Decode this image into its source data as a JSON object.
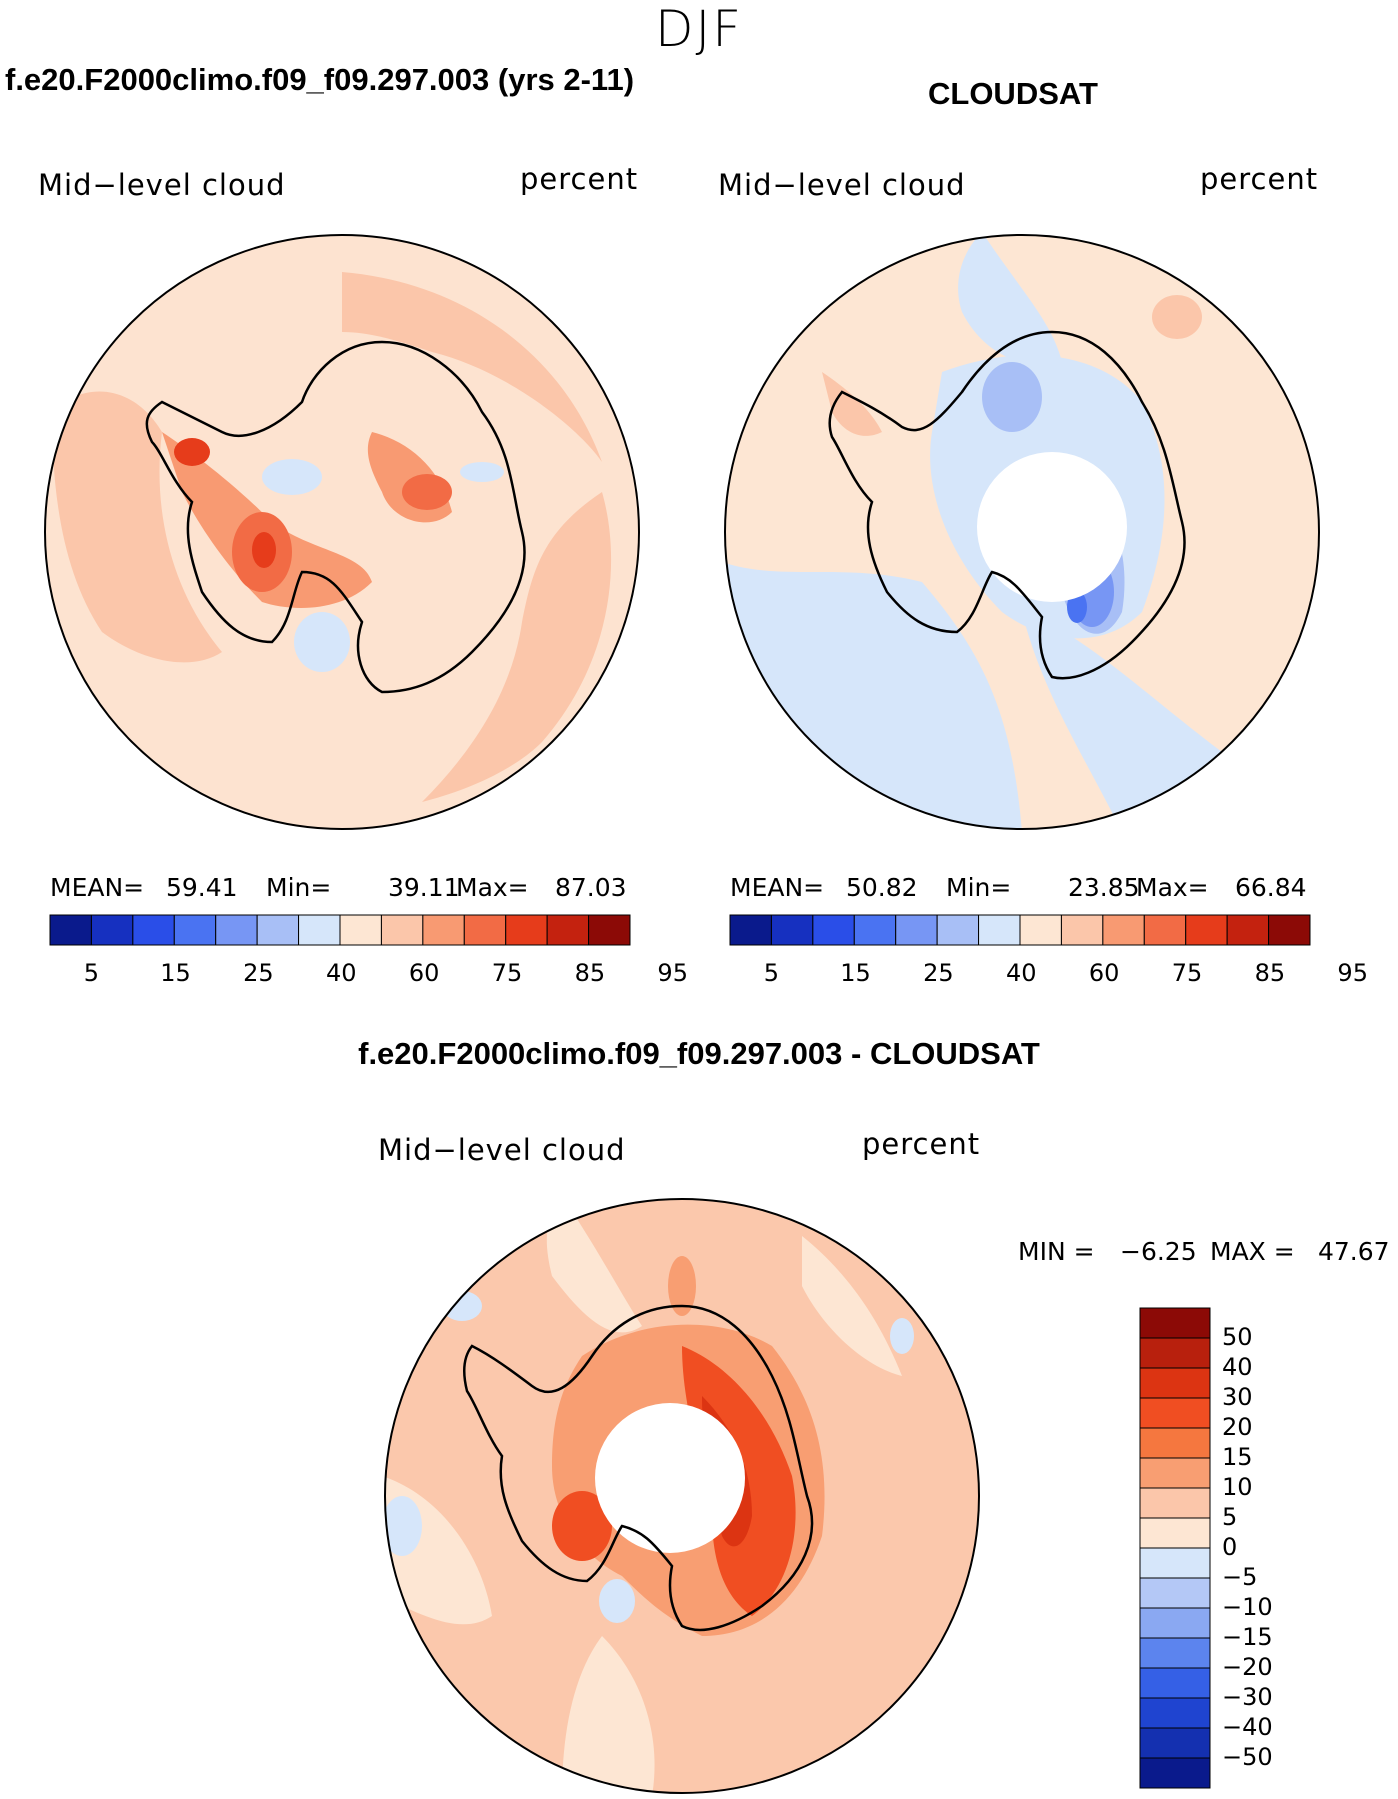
{
  "figure": {
    "season": "DJF"
  },
  "panels": [
    {
      "title": "f.e20.F2000climo.f09_f09.297.003 (yrs 2-11)",
      "left_label": "Mid−level cloud",
      "right_label": "percent",
      "mean_label": "MEAN=",
      "mean_value": "59.41",
      "min_label": "Min=",
      "min_value": "39.11",
      "max_label": "Max=",
      "max_value": "87.03",
      "background_color": "#fde3d0",
      "has_pole_hole": false
    },
    {
      "title": "CLOUDSAT",
      "left_label": "Mid−level cloud",
      "right_label": "percent",
      "mean_label": "MEAN=",
      "mean_value": "50.82",
      "min_label": "Min=",
      "min_value": "23.85",
      "max_label": "Max=",
      "max_value": "66.84",
      "background_color": "#fde6d3",
      "has_pole_hole": true
    }
  ],
  "shared_colorbar": {
    "colors": [
      "#0a1a8c",
      "#1630c0",
      "#2a4ee8",
      "#4a73f2",
      "#7796f4",
      "#a8bff6",
      "#d6e6fa",
      "#fde6d3",
      "#fbc6aa",
      "#f89a72",
      "#f26b45",
      "#e63c1b",
      "#c4220f",
      "#8c0a06"
    ],
    "tick_labels": [
      "5",
      "15",
      "25",
      "40",
      "60",
      "75",
      "85",
      "95"
    ]
  },
  "difference": {
    "title": "f.e20.F2000climo.f09_f09.297.003 - CLOUDSAT",
    "left_label": "Mid−level cloud",
    "right_label": "percent",
    "min_label": "MIN =",
    "min_value": "−6.25",
    "max_label": "MAX =",
    "max_value": "47.67",
    "background_color": "#fbc8ac",
    "has_pole_hole": true,
    "colorbar_colors": [
      "#8c0a06",
      "#b8200d",
      "#dc3412",
      "#f04e22",
      "#f5773f",
      "#f89e72",
      "#fbc6aa",
      "#fde6d3",
      "#d6e6fa",
      "#b4c8f6",
      "#8aa8f2",
      "#5c84ee",
      "#3560e6",
      "#1f44d0",
      "#1430b0",
      "#0a1a8c"
    ],
    "colorbar_labels": [
      "50",
      "40",
      "30",
      "20",
      "15",
      "10",
      "5",
      "0",
      "−5",
      "−10",
      "−15",
      "−20",
      "−30",
      "−40",
      "−50"
    ]
  }
}
